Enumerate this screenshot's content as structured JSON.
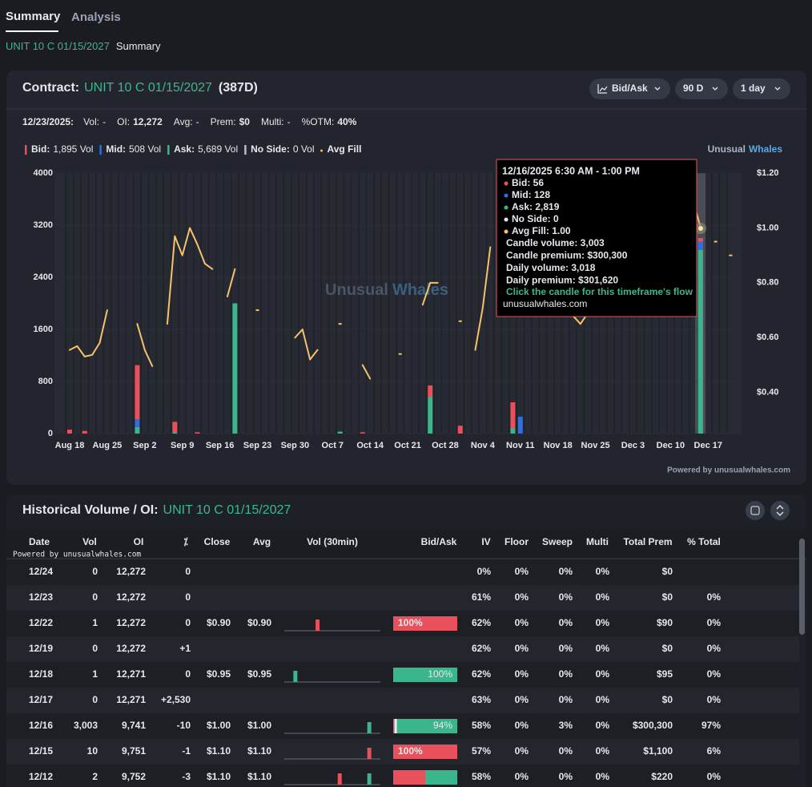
{
  "tabs": [
    "Summary",
    "Analysis"
  ],
  "breadcrumb": {
    "contract": "UNIT 10 C 01/15/2027",
    "page": "Summary"
  },
  "contract_panel": {
    "title_prefix": "Contract:",
    "contract": "UNIT 10 C 01/15/2027",
    "dte": "(387D)",
    "controls": [
      "Bid/Ask",
      "90 D",
      "1 day"
    ],
    "stats_date": "12/23/2025:",
    "stats": [
      {
        "label": "Vol:",
        "value": "-"
      },
      {
        "label": "OI:",
        "value": "12,272"
      },
      {
        "label": "Avg:",
        "value": "-"
      },
      {
        "label": "Prem:",
        "value": "$0"
      },
      {
        "label": "Multi:",
        "value": "-"
      },
      {
        "label": "%OTM:",
        "value": "40%"
      }
    ],
    "legend": [
      {
        "label": "Bid:",
        "value": "1,895 Vol",
        "color": "#e8505b"
      },
      {
        "label": "Mid:",
        "value": "508 Vol",
        "color": "#2f6fe0"
      },
      {
        "label": "Ask:",
        "value": "5,689 Vol",
        "color": "#3bb58c"
      },
      {
        "label": "No Side:",
        "value": "0 Vol",
        "color": "#b8bcc6"
      },
      {
        "label": "Avg Fill",
        "color": "#f5c36b"
      }
    ],
    "brand": [
      "Unusual",
      "Whales"
    ],
    "powered": "Powered by unusualwhales.com"
  },
  "chart_data": {
    "type": "bar",
    "stacked": true,
    "grid": true,
    "watermark": [
      "Unusual",
      "Whales"
    ],
    "categories": [
      "Aug 18",
      null,
      null,
      null,
      null,
      "Aug 25",
      null,
      null,
      null,
      null,
      "Sep 2",
      null,
      null,
      null,
      null,
      "Sep 9",
      null,
      null,
      null,
      null,
      "Sep 16",
      null,
      null,
      null,
      null,
      "Sep 23",
      null,
      null,
      null,
      null,
      "Sep 30",
      null,
      null,
      null,
      null,
      "Oct 7",
      null,
      null,
      null,
      null,
      "Oct 14",
      null,
      null,
      null,
      null,
      "Oct 21",
      null,
      null,
      null,
      null,
      "Oct 28",
      null,
      null,
      null,
      null,
      "Nov 4",
      null,
      null,
      null,
      null,
      "Nov 11",
      null,
      null,
      null,
      null,
      "Nov 18",
      null,
      null,
      null,
      null,
      "Nov 25",
      null,
      null,
      null,
      null,
      "Dec 3",
      null,
      null,
      null,
      null,
      "Dec 10",
      null,
      null,
      null,
      null,
      "Dec 17",
      null,
      null,
      null
    ],
    "series": [
      {
        "color": "#3bb58c",
        "values": [
          0,
          0,
          0,
          0,
          0,
          0,
          0,
          0,
          0,
          100,
          0,
          0,
          0,
          0,
          20,
          0,
          0,
          0,
          0,
          0,
          0,
          0,
          2000,
          0,
          0,
          0,
          0,
          0,
          0,
          0,
          0,
          0,
          0,
          0,
          0,
          0,
          30,
          0,
          0,
          0,
          0,
          0,
          0,
          0,
          0,
          0,
          0,
          0,
          560,
          0,
          0,
          0,
          0,
          0,
          0,
          0,
          0,
          0,
          0,
          80,
          0,
          0,
          0,
          0,
          0,
          0,
          0,
          0,
          0,
          0,
          0,
          0,
          0,
          0,
          0,
          0,
          0,
          0,
          0,
          0,
          0,
          0,
          0,
          0,
          2819,
          0,
          0,
          0,
          0
        ]
      },
      {
        "color": "#2f6fe0",
        "values": [
          0,
          0,
          0,
          0,
          0,
          0,
          0,
          0,
          0,
          120,
          0,
          0,
          0,
          0,
          0,
          0,
          0,
          0,
          0,
          0,
          0,
          0,
          0,
          0,
          0,
          0,
          0,
          0,
          0,
          0,
          0,
          0,
          0,
          0,
          0,
          0,
          0,
          0,
          0,
          0,
          0,
          0,
          0,
          0,
          0,
          0,
          0,
          0,
          0,
          0,
          0,
          0,
          0,
          0,
          0,
          0,
          0,
          0,
          0,
          0,
          260,
          0,
          0,
          0,
          0,
          0,
          0,
          0,
          0,
          0,
          0,
          0,
          0,
          0,
          0,
          0,
          0,
          0,
          0,
          0,
          0,
          0,
          0,
          0,
          128,
          0,
          0,
          0,
          0
        ]
      },
      {
        "color": "#e8505b",
        "values": [
          60,
          0,
          40,
          0,
          0,
          0,
          0,
          0,
          0,
          830,
          0,
          0,
          0,
          0,
          160,
          0,
          0,
          20,
          0,
          0,
          0,
          0,
          0,
          0,
          0,
          0,
          0,
          0,
          0,
          0,
          0,
          0,
          0,
          0,
          0,
          0,
          0,
          0,
          0,
          20,
          0,
          0,
          0,
          0,
          0,
          0,
          0,
          0,
          180,
          0,
          0,
          0,
          120,
          0,
          0,
          0,
          0,
          0,
          0,
          400,
          0,
          0,
          0,
          0,
          0,
          0,
          0,
          0,
          0,
          0,
          0,
          0,
          0,
          0,
          0,
          0,
          0,
          0,
          0,
          0,
          0,
          0,
          0,
          0,
          56,
          0,
          0,
          0,
          0
        ]
      },
      {
        "type": "line",
        "axis": "y2",
        "color": "#f5c36b",
        "values": [
          0.555,
          0.569,
          0.531,
          0.537,
          0.581,
          0.7,
          null,
          null,
          null,
          0.65,
          0.555,
          0.496,
          null,
          0.65,
          0.97,
          0.9,
          1.0,
          0.94,
          0.87,
          0.85,
          null,
          0.75,
          0.85,
          null,
          null,
          0.7,
          null,
          null,
          null,
          null,
          0.6,
          0.63,
          0.52,
          0.555,
          null,
          null,
          0.65,
          null,
          null,
          0.5,
          0.45,
          null,
          null,
          null,
          0.54,
          null,
          null,
          0.72,
          0.8,
          0.8,
          null,
          null,
          0.66,
          null,
          0.555,
          0.71,
          0.93,
          null,
          null,
          null,
          null,
          null,
          null,
          null,
          null,
          null,
          null,
          0.68,
          0.65,
          0.69,
          null,
          null,
          null,
          null,
          null,
          null,
          null,
          null,
          0.69,
          0.75,
          null,
          null,
          1.1,
          1.1,
          1.0,
          null,
          0.95,
          null,
          0.9
        ]
      }
    ],
    "ylim": [
      0,
      4000
    ],
    "yticks": [
      0,
      800,
      1600,
      2400,
      3200,
      4000
    ],
    "y2lim": [
      0.25,
      1.2
    ],
    "y2ticks": [
      {
        "value": 0.4,
        "label": "$0.40"
      },
      {
        "value": 0.6,
        "label": "$0.60"
      },
      {
        "value": 0.8,
        "label": "$0.80"
      },
      {
        "value": 1.0,
        "label": "$1.00"
      },
      {
        "value": 1.2,
        "label": "$1.20"
      }
    ]
  },
  "tooltip": {
    "title": "12/16/2025 6:30 AM - 1:00 PM",
    "items": [
      {
        "label": "Bid: 56",
        "color": "#e8505b"
      },
      {
        "label": "Mid: 128",
        "color": "#2f6fe0"
      },
      {
        "label": "Ask: 2,819",
        "color": "#3bb58c"
      },
      {
        "label": "No Side: 0",
        "color": "#e6e8ee"
      },
      {
        "label": "Avg Fill: 1.00",
        "color": "#f5c36b"
      }
    ],
    "lines": [
      "Candle volume: 3,003",
      "Candle premium: $300,300",
      "Daily volume: 3,018",
      "Daily premium: $301,620"
    ],
    "link": "Click the candle for this timeframe's flow",
    "site": "unusualwhales.com"
  },
  "history": {
    "title_prefix": "Historical Volume / OI:",
    "contract": "UNIT 10 C 01/15/2027",
    "watermark": "Powered by unusualwhales.com",
    "columns": [
      "Date",
      "Vol",
      "OI",
      "⁒",
      "Close",
      "Avg",
      "Vol (30min)",
      "Bid/Ask",
      "IV",
      "Floor",
      "Sweep",
      "Multi",
      "Total Prem",
      "% Total"
    ],
    "rows": [
      {
        "cells": [
          "12/24",
          "0",
          "12,272",
          "0",
          null,
          null,
          "0%",
          "0%",
          "0%",
          "0%",
          "$0",
          null
        ]
      },
      {
        "cells": [
          "12/23",
          "0",
          "12,272",
          "0",
          null,
          null,
          "61%",
          "0%",
          "0%",
          "0%",
          "$0",
          "0%"
        ]
      },
      {
        "cells": [
          "12/22",
          "1",
          "12,272",
          "0",
          "$0.90",
          "$0.90",
          "62%",
          "0%",
          "0%",
          "0%",
          "$90",
          "0%"
        ],
        "vol_30min": [
          null,
          null,
          null,
          null,
          1,
          null,
          null,
          null,
          null,
          null,
          null,
          null,
          null
        ],
        "vol_30min_colors": [
          null,
          null,
          null,
          null,
          "#e8505b",
          null,
          null,
          null,
          null,
          null,
          null,
          null,
          null
        ],
        "bid_ask": [
          100,
          0,
          0
        ],
        "bid_ask_label": "100%"
      },
      {
        "cells": [
          "12/19",
          "0",
          "12,272",
          "+1",
          null,
          null,
          "62%",
          "0%",
          "0%",
          "0%",
          "$0",
          "0%"
        ]
      },
      {
        "cells": [
          "12/18",
          "1",
          "12,271",
          "0",
          "$0.95",
          "$0.95",
          "62%",
          "0%",
          "0%",
          "0%",
          "$95",
          "0%"
        ],
        "vol_30min": [
          null,
          1,
          null,
          null,
          null,
          null,
          null,
          null,
          null,
          null,
          null,
          null,
          null
        ],
        "vol_30min_colors": [
          null,
          "#3bb58c",
          null,
          null,
          null,
          null,
          null,
          null,
          null,
          null,
          null,
          null,
          null
        ],
        "bid_ask": [
          0,
          0,
          100
        ],
        "bid_ask_label": "100%"
      },
      {
        "cells": [
          "12/17",
          "0",
          "12,271",
          "+2,530",
          null,
          null,
          "63%",
          "0%",
          "0%",
          "0%",
          "$0",
          "0%"
        ]
      },
      {
        "cells": [
          "12/16",
          "3,003",
          "9,741",
          "-10",
          "$1.00",
          "$1.00",
          "58%",
          "0%",
          "3%",
          "0%",
          "$300,300",
          "97%"
        ],
        "vol_30min": [
          null,
          null,
          null,
          null,
          null,
          null,
          null,
          null,
          null,
          null,
          null,
          3003,
          null
        ],
        "vol_30min_colors": [
          null,
          null,
          null,
          null,
          null,
          null,
          null,
          null,
          null,
          null,
          null,
          "#3bb58c",
          null
        ],
        "bid_ask": [
          2,
          4,
          94
        ],
        "bid_ask_label": "94%"
      },
      {
        "cells": [
          "12/15",
          "10",
          "9,751",
          "-1",
          "$1.10",
          "$1.10",
          "57%",
          "0%",
          "0%",
          "0%",
          "$1,100",
          "6%"
        ],
        "vol_30min": [
          null,
          null,
          null,
          null,
          null,
          null,
          null,
          null,
          null,
          null,
          null,
          10,
          null
        ],
        "vol_30min_colors": [
          null,
          null,
          null,
          null,
          null,
          null,
          null,
          null,
          null,
          null,
          null,
          "#e8505b",
          null
        ],
        "bid_ask": [
          100,
          0,
          0
        ],
        "bid_ask_label": "100%"
      },
      {
        "cells": [
          "12/12",
          "2",
          "9,752",
          "-3",
          "$1.10",
          "$1.10",
          "58%",
          "0%",
          "0%",
          "0%",
          "$220",
          "0%"
        ],
        "vol_30min": [
          null,
          null,
          null,
          null,
          null,
          null,
          null,
          1,
          null,
          null,
          null,
          1,
          null
        ],
        "vol_30min_colors": [
          null,
          null,
          null,
          null,
          null,
          null,
          null,
          "#e8505b",
          null,
          null,
          null,
          "#3bb58c",
          null
        ],
        "bid_ask": [
          50,
          0,
          50
        ]
      }
    ]
  }
}
